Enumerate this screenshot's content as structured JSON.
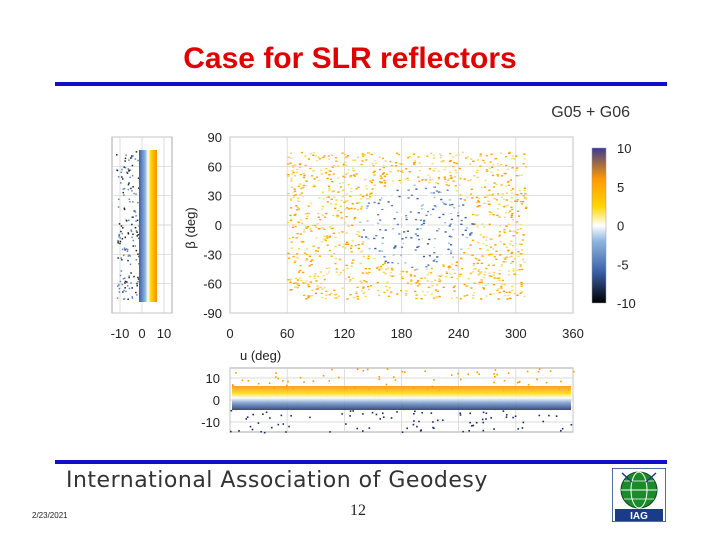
{
  "slide": {
    "title": "Case for SLR reflectors",
    "subtitle": "G05 + G06",
    "footer_org": "International Association of Geodesy",
    "footer_date": "2/23/2021",
    "page_number": "12",
    "logo_text": "IAG",
    "rule_color": "#1010cc",
    "title_color": "#e00000"
  },
  "chart_data": {
    "type": "scatter",
    "main": {
      "xlabel": "u (deg)",
      "ylabel": "β (deg)",
      "xlim": [
        0,
        360
      ],
      "ylim": [
        -90,
        90
      ],
      "x_ticks": [
        "0",
        "60",
        "120",
        "180",
        "240",
        "300",
        "360"
      ],
      "y_ticks": [
        "90",
        "60",
        "30",
        "0",
        "-30",
        "-60",
        "-90"
      ]
    },
    "left_panel": {
      "xlim": [
        -10,
        10
      ],
      "x_ticks": [
        "-10",
        "0",
        "10"
      ]
    },
    "bottom_panel": {
      "ylim": [
        -10,
        10
      ],
      "y_ticks": [
        "10",
        "0",
        "-10"
      ]
    },
    "colorbar": {
      "range": [
        -10,
        10
      ],
      "ticks": [
        "10",
        "5",
        "0",
        "-5",
        "-10"
      ],
      "colors": [
        "#000000",
        "#3a5fa8",
        "#8fb6e0",
        "#ffffff",
        "#ffd700",
        "#ff9a00",
        "#3b3b8f"
      ]
    }
  }
}
